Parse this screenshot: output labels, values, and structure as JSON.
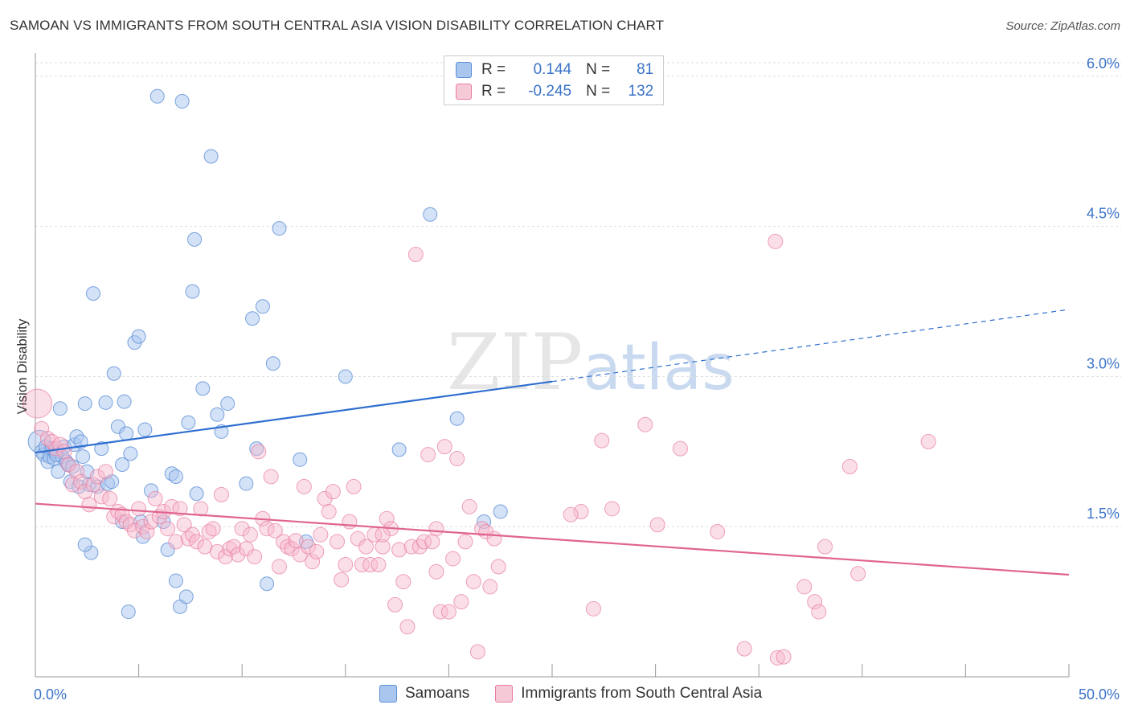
{
  "header": {
    "title": "SAMOAN VS IMMIGRANTS FROM SOUTH CENTRAL ASIA VISION DISABILITY CORRELATION CHART",
    "source": "Source: ZipAtlas.com"
  },
  "watermark": {
    "zip": "ZIP",
    "atlas": "atlas"
  },
  "legend": {
    "rows": [
      {
        "r_label": "R =",
        "r_value": "0.144",
        "n_label": "N =",
        "n_value": "81",
        "color": "#a9c6ef"
      },
      {
        "r_label": "R =",
        "r_value": "-0.245",
        "n_label": "N =",
        "n_value": "132",
        "color": "#f6b8cb"
      }
    ],
    "bottom": [
      {
        "label": "Samoans",
        "color": "#a9c6ef"
      },
      {
        "label": "Immigrants from South Central Asia",
        "color": "#f6b8cb"
      }
    ]
  },
  "chart_data": {
    "type": "scatter",
    "title": "SAMOAN VS IMMIGRANTS FROM SOUTH CENTRAL ASIA VISION DISABILITY CORRELATION CHART",
    "xlabel": "",
    "ylabel": "Vision Disability",
    "xlim": [
      0,
      50
    ],
    "ylim": [
      0,
      6.2
    ],
    "x_tick_labels": [
      "0.0%",
      "50.0%"
    ],
    "y_tick_labels": [
      "1.5%",
      "3.0%",
      "4.5%",
      "6.0%"
    ],
    "y_ticks": [
      1.5,
      3.0,
      4.5,
      6.0
    ],
    "grid": true,
    "legend_position": "top-center",
    "series": [
      {
        "name": "Samoans",
        "color": "#5b8fd6",
        "fill": "#a9c6ef",
        "trend": {
          "x0": 0,
          "y0": 2.24,
          "x1": 25,
          "y1": 2.95,
          "dashed_to_x": 50,
          "dashed_to_y": 3.67
        },
        "points": [
          [
            0.2,
            2.35
          ],
          [
            0.3,
            2.25
          ],
          [
            0.4,
            2.22
          ],
          [
            0.5,
            2.3
          ],
          [
            0.6,
            2.15
          ],
          [
            0.7,
            2.2
          ],
          [
            0.8,
            2.28
          ],
          [
            0.9,
            2.18
          ],
          [
            1.0,
            2.25
          ],
          [
            1.1,
            2.05
          ],
          [
            1.2,
            2.68
          ],
          [
            1.3,
            2.2
          ],
          [
            1.4,
            2.3
          ],
          [
            1.5,
            2.15
          ],
          [
            1.6,
            2.12
          ],
          [
            1.7,
            1.95
          ],
          [
            1.8,
            2.1
          ],
          [
            1.9,
            2.32
          ],
          [
            2.0,
            2.4
          ],
          [
            2.1,
            1.9
          ],
          [
            2.2,
            2.35
          ],
          [
            2.3,
            2.2
          ],
          [
            2.4,
            2.73
          ],
          [
            2.5,
            2.05
          ],
          [
            2.6,
            1.92
          ],
          [
            2.8,
            3.83
          ],
          [
            3.0,
            1.9
          ],
          [
            3.2,
            2.28
          ],
          [
            3.4,
            2.74
          ],
          [
            3.5,
            1.93
          ],
          [
            3.8,
            3.03
          ],
          [
            4.0,
            2.5
          ],
          [
            4.2,
            2.12
          ],
          [
            4.3,
            2.75
          ],
          [
            4.4,
            2.43
          ],
          [
            4.6,
            2.23
          ],
          [
            4.8,
            3.34
          ],
          [
            5.0,
            3.4
          ],
          [
            5.2,
            1.4
          ],
          [
            5.3,
            2.47
          ],
          [
            5.6,
            1.86
          ],
          [
            5.9,
            5.8
          ],
          [
            6.2,
            1.55
          ],
          [
            6.4,
            1.27
          ],
          [
            6.6,
            2.03
          ],
          [
            6.8,
            2.0
          ],
          [
            7.1,
            5.75
          ],
          [
            7.4,
            2.54
          ],
          [
            7.6,
            3.85
          ],
          [
            7.7,
            4.37
          ],
          [
            7.8,
            1.83
          ],
          [
            8.1,
            2.88
          ],
          [
            8.5,
            5.2
          ],
          [
            8.8,
            2.62
          ],
          [
            9.0,
            2.45
          ],
          [
            9.3,
            2.73
          ],
          [
            10.2,
            1.93
          ],
          [
            10.5,
            3.58
          ],
          [
            10.7,
            2.28
          ],
          [
            11.0,
            3.7
          ],
          [
            11.5,
            3.13
          ],
          [
            11.8,
            4.48
          ],
          [
            12.8,
            2.17
          ],
          [
            13.1,
            1.35
          ],
          [
            15.0,
            3.0
          ],
          [
            17.6,
            2.27
          ],
          [
            19.1,
            4.62
          ],
          [
            20.4,
            2.58
          ],
          [
            21.7,
            1.55
          ],
          [
            22.5,
            1.65
          ],
          [
            2.7,
            1.24
          ],
          [
            2.4,
            1.32
          ],
          [
            4.5,
            0.65
          ],
          [
            6.8,
            0.96
          ],
          [
            7.0,
            0.7
          ],
          [
            7.3,
            0.8
          ],
          [
            11.2,
            0.93
          ],
          [
            1.0,
            2.22
          ],
          [
            3.7,
            1.95
          ],
          [
            5.1,
            1.55
          ],
          [
            4.2,
            1.55
          ]
        ]
      },
      {
        "name": "Immigrants from South Central Asia",
        "color": "#e77b9f",
        "fill": "#f6b8cb",
        "trend": {
          "x0": 0,
          "y0": 1.73,
          "x1": 50,
          "y1": 1.02
        },
        "points": [
          [
            0.1,
            2.73
          ],
          [
            0.3,
            2.48
          ],
          [
            0.6,
            2.38
          ],
          [
            0.8,
            2.35
          ],
          [
            1.0,
            2.28
          ],
          [
            1.2,
            2.32
          ],
          [
            1.4,
            2.25
          ],
          [
            1.6,
            2.12
          ],
          [
            1.8,
            1.92
          ],
          [
            2.0,
            2.05
          ],
          [
            2.2,
            1.95
          ],
          [
            2.4,
            1.85
          ],
          [
            2.6,
            1.72
          ],
          [
            2.8,
            1.92
          ],
          [
            3.0,
            2.0
          ],
          [
            3.2,
            1.8
          ],
          [
            3.4,
            2.05
          ],
          [
            3.6,
            1.78
          ],
          [
            3.8,
            1.6
          ],
          [
            4.0,
            1.65
          ],
          [
            4.2,
            1.62
          ],
          [
            4.4,
            1.55
          ],
          [
            4.6,
            1.52
          ],
          [
            4.8,
            1.46
          ],
          [
            5.0,
            1.68
          ],
          [
            5.2,
            1.5
          ],
          [
            5.4,
            1.45
          ],
          [
            5.6,
            1.55
          ],
          [
            5.8,
            1.78
          ],
          [
            6.0,
            1.6
          ],
          [
            6.2,
            1.65
          ],
          [
            6.4,
            1.48
          ],
          [
            6.6,
            1.7
          ],
          [
            6.8,
            1.35
          ],
          [
            7.0,
            1.68
          ],
          [
            7.2,
            1.52
          ],
          [
            7.4,
            1.38
          ],
          [
            7.6,
            1.42
          ],
          [
            7.8,
            1.35
          ],
          [
            8.0,
            1.68
          ],
          [
            8.2,
            1.3
          ],
          [
            8.4,
            1.45
          ],
          [
            8.6,
            1.48
          ],
          [
            8.8,
            1.25
          ],
          [
            9.0,
            1.82
          ],
          [
            9.2,
            1.2
          ],
          [
            9.4,
            1.28
          ],
          [
            9.6,
            1.3
          ],
          [
            9.8,
            1.22
          ],
          [
            10.0,
            1.48
          ],
          [
            10.2,
            1.28
          ],
          [
            10.4,
            1.42
          ],
          [
            10.6,
            1.2
          ],
          [
            10.8,
            2.25
          ],
          [
            11.0,
            1.58
          ],
          [
            11.2,
            1.48
          ],
          [
            11.4,
            2.0
          ],
          [
            11.6,
            1.46
          ],
          [
            11.8,
            1.1
          ],
          [
            12.0,
            1.35
          ],
          [
            12.2,
            1.3
          ],
          [
            12.4,
            1.28
          ],
          [
            12.6,
            1.36
          ],
          [
            12.8,
            1.22
          ],
          [
            13.0,
            1.9
          ],
          [
            13.2,
            1.3
          ],
          [
            13.4,
            1.15
          ],
          [
            13.6,
            1.25
          ],
          [
            13.8,
            1.42
          ],
          [
            14.0,
            1.78
          ],
          [
            14.2,
            1.65
          ],
          [
            14.4,
            1.85
          ],
          [
            14.6,
            1.35
          ],
          [
            14.8,
            0.97
          ],
          [
            15.0,
            1.12
          ],
          [
            15.2,
            1.55
          ],
          [
            15.4,
            1.9
          ],
          [
            15.6,
            1.38
          ],
          [
            15.8,
            1.12
          ],
          [
            16.0,
            1.3
          ],
          [
            16.2,
            1.12
          ],
          [
            16.4,
            1.42
          ],
          [
            16.6,
            1.12
          ],
          [
            16.8,
            1.3
          ],
          [
            17.0,
            1.58
          ],
          [
            17.2,
            1.48
          ],
          [
            17.4,
            0.72
          ],
          [
            17.6,
            1.27
          ],
          [
            17.8,
            0.95
          ],
          [
            18.0,
            0.5
          ],
          [
            18.2,
            1.3
          ],
          [
            18.4,
            4.22
          ],
          [
            18.6,
            1.3
          ],
          [
            18.8,
            1.35
          ],
          [
            19.0,
            2.22
          ],
          [
            19.2,
            1.35
          ],
          [
            19.4,
            1.05
          ],
          [
            19.6,
            0.65
          ],
          [
            19.8,
            2.3
          ],
          [
            20.0,
            0.65
          ],
          [
            20.2,
            1.18
          ],
          [
            20.4,
            2.18
          ],
          [
            20.6,
            0.75
          ],
          [
            20.8,
            1.35
          ],
          [
            21.0,
            1.7
          ],
          [
            21.2,
            0.95
          ],
          [
            21.4,
            0.25
          ],
          [
            21.6,
            1.48
          ],
          [
            21.8,
            1.45
          ],
          [
            22.0,
            0.9
          ],
          [
            22.2,
            1.38
          ],
          [
            22.4,
            1.1
          ],
          [
            26.4,
            1.65
          ],
          [
            27.4,
            2.36
          ],
          [
            27.9,
            1.68
          ],
          [
            29.5,
            2.52
          ],
          [
            30.1,
            1.52
          ],
          [
            31.2,
            2.28
          ],
          [
            33.0,
            1.45
          ],
          [
            35.8,
            4.35
          ],
          [
            35.9,
            0.19
          ],
          [
            36.2,
            0.2
          ],
          [
            37.2,
            0.9
          ],
          [
            37.7,
            0.75
          ],
          [
            37.9,
            0.65
          ],
          [
            38.2,
            1.3
          ],
          [
            39.4,
            2.1
          ],
          [
            39.8,
            1.03
          ],
          [
            43.2,
            2.35
          ],
          [
            27.0,
            0.68
          ],
          [
            25.9,
            1.62
          ],
          [
            34.3,
            0.28
          ],
          [
            16.8,
            1.42
          ],
          [
            19.4,
            1.48
          ]
        ]
      }
    ]
  }
}
